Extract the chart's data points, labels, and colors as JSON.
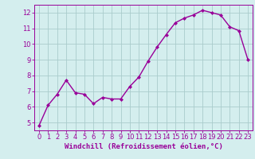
{
  "x": [
    0,
    1,
    2,
    3,
    4,
    5,
    6,
    7,
    8,
    9,
    10,
    11,
    12,
    13,
    14,
    15,
    16,
    17,
    18,
    19,
    20,
    21,
    22,
    23
  ],
  "y": [
    4.8,
    6.1,
    6.8,
    7.7,
    6.9,
    6.8,
    6.2,
    6.6,
    6.5,
    6.5,
    7.3,
    7.9,
    8.9,
    9.8,
    10.6,
    11.35,
    11.65,
    11.85,
    12.15,
    12.0,
    11.85,
    11.1,
    10.85,
    9.0
  ],
  "line_color": "#990099",
  "marker": "D",
  "marker_size": 2.0,
  "line_width": 1.0,
  "bg_color": "#d4eeee",
  "grid_color": "#aacccc",
  "xlabel": "Windchill (Refroidissement éolien,°C)",
  "xlabel_color": "#990099",
  "xlabel_fontsize": 6.5,
  "tick_color": "#990099",
  "tick_fontsize": 6,
  "xlim": [
    -0.5,
    23.5
  ],
  "ylim": [
    4.5,
    12.5
  ],
  "yticks": [
    5,
    6,
    7,
    8,
    9,
    10,
    11,
    12
  ],
  "xticks": [
    0,
    1,
    2,
    3,
    4,
    5,
    6,
    7,
    8,
    9,
    10,
    11,
    12,
    13,
    14,
    15,
    16,
    17,
    18,
    19,
    20,
    21,
    22,
    23
  ]
}
